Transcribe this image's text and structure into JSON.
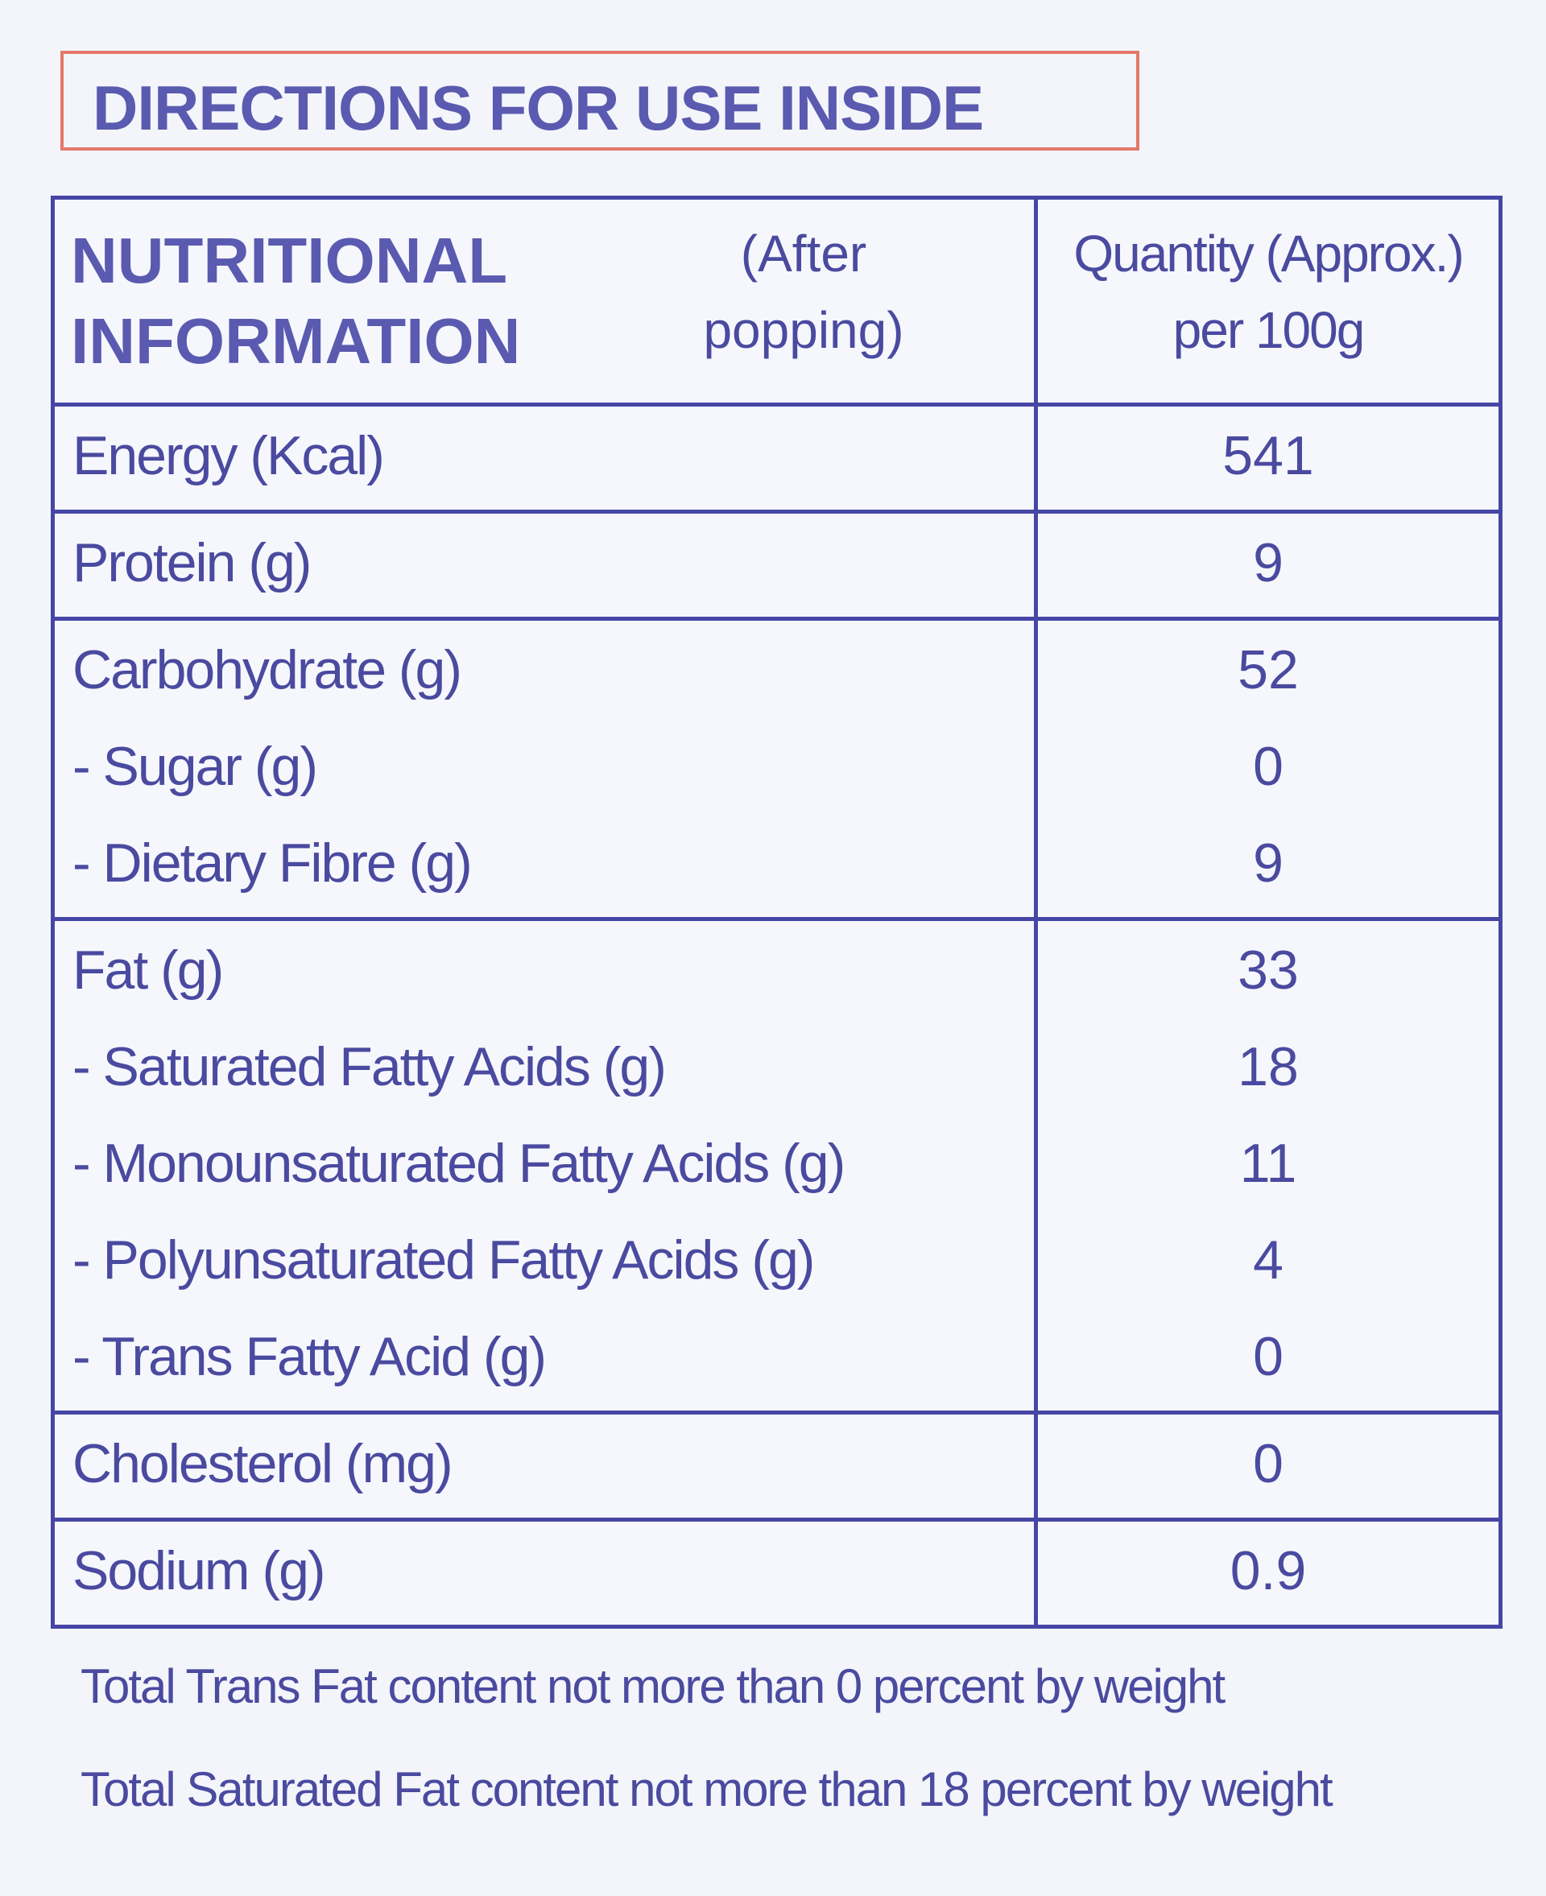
{
  "header": {
    "title": "DIRECTIONS FOR USE INSIDE"
  },
  "table": {
    "heading": {
      "title": [
        "NUTRITIONAL",
        "INFORMATION"
      ],
      "note": [
        "(After",
        "popping)"
      ],
      "quantity": [
        "Quantity (Approx.)",
        "per 100g"
      ]
    },
    "groups": [
      [
        {
          "label": "Energy (Kcal)",
          "value": 541
        }
      ],
      [
        {
          "label": "Protein (g)",
          "value": 9
        }
      ],
      [
        {
          "label": "Carbohydrate (g)",
          "value": 52
        },
        {
          "label": "- Sugar (g)",
          "value": 0
        },
        {
          "label": "- Dietary Fibre (g)",
          "value": 9
        }
      ],
      [
        {
          "label": "Fat (g)",
          "value": 33
        },
        {
          "label": "- Saturated Fatty Acids (g)",
          "value": 18
        },
        {
          "label": "- Monounsaturated Fatty Acids (g)",
          "value": 11
        },
        {
          "label": "- Polyunsaturated Fatty Acids (g)",
          "value": 4
        },
        {
          "label": "- Trans Fatty Acid (g)",
          "value": 0
        }
      ],
      [
        {
          "label": "Cholesterol (mg)",
          "value": 0
        }
      ],
      [
        {
          "label": "Sodium (g)",
          "value": 0.9
        }
      ]
    ]
  },
  "footnotes": [
    "Total Trans Fat content not more than 0 percent by weight",
    "Total Saturated Fat content not more than 18 percent by weight"
  ]
}
